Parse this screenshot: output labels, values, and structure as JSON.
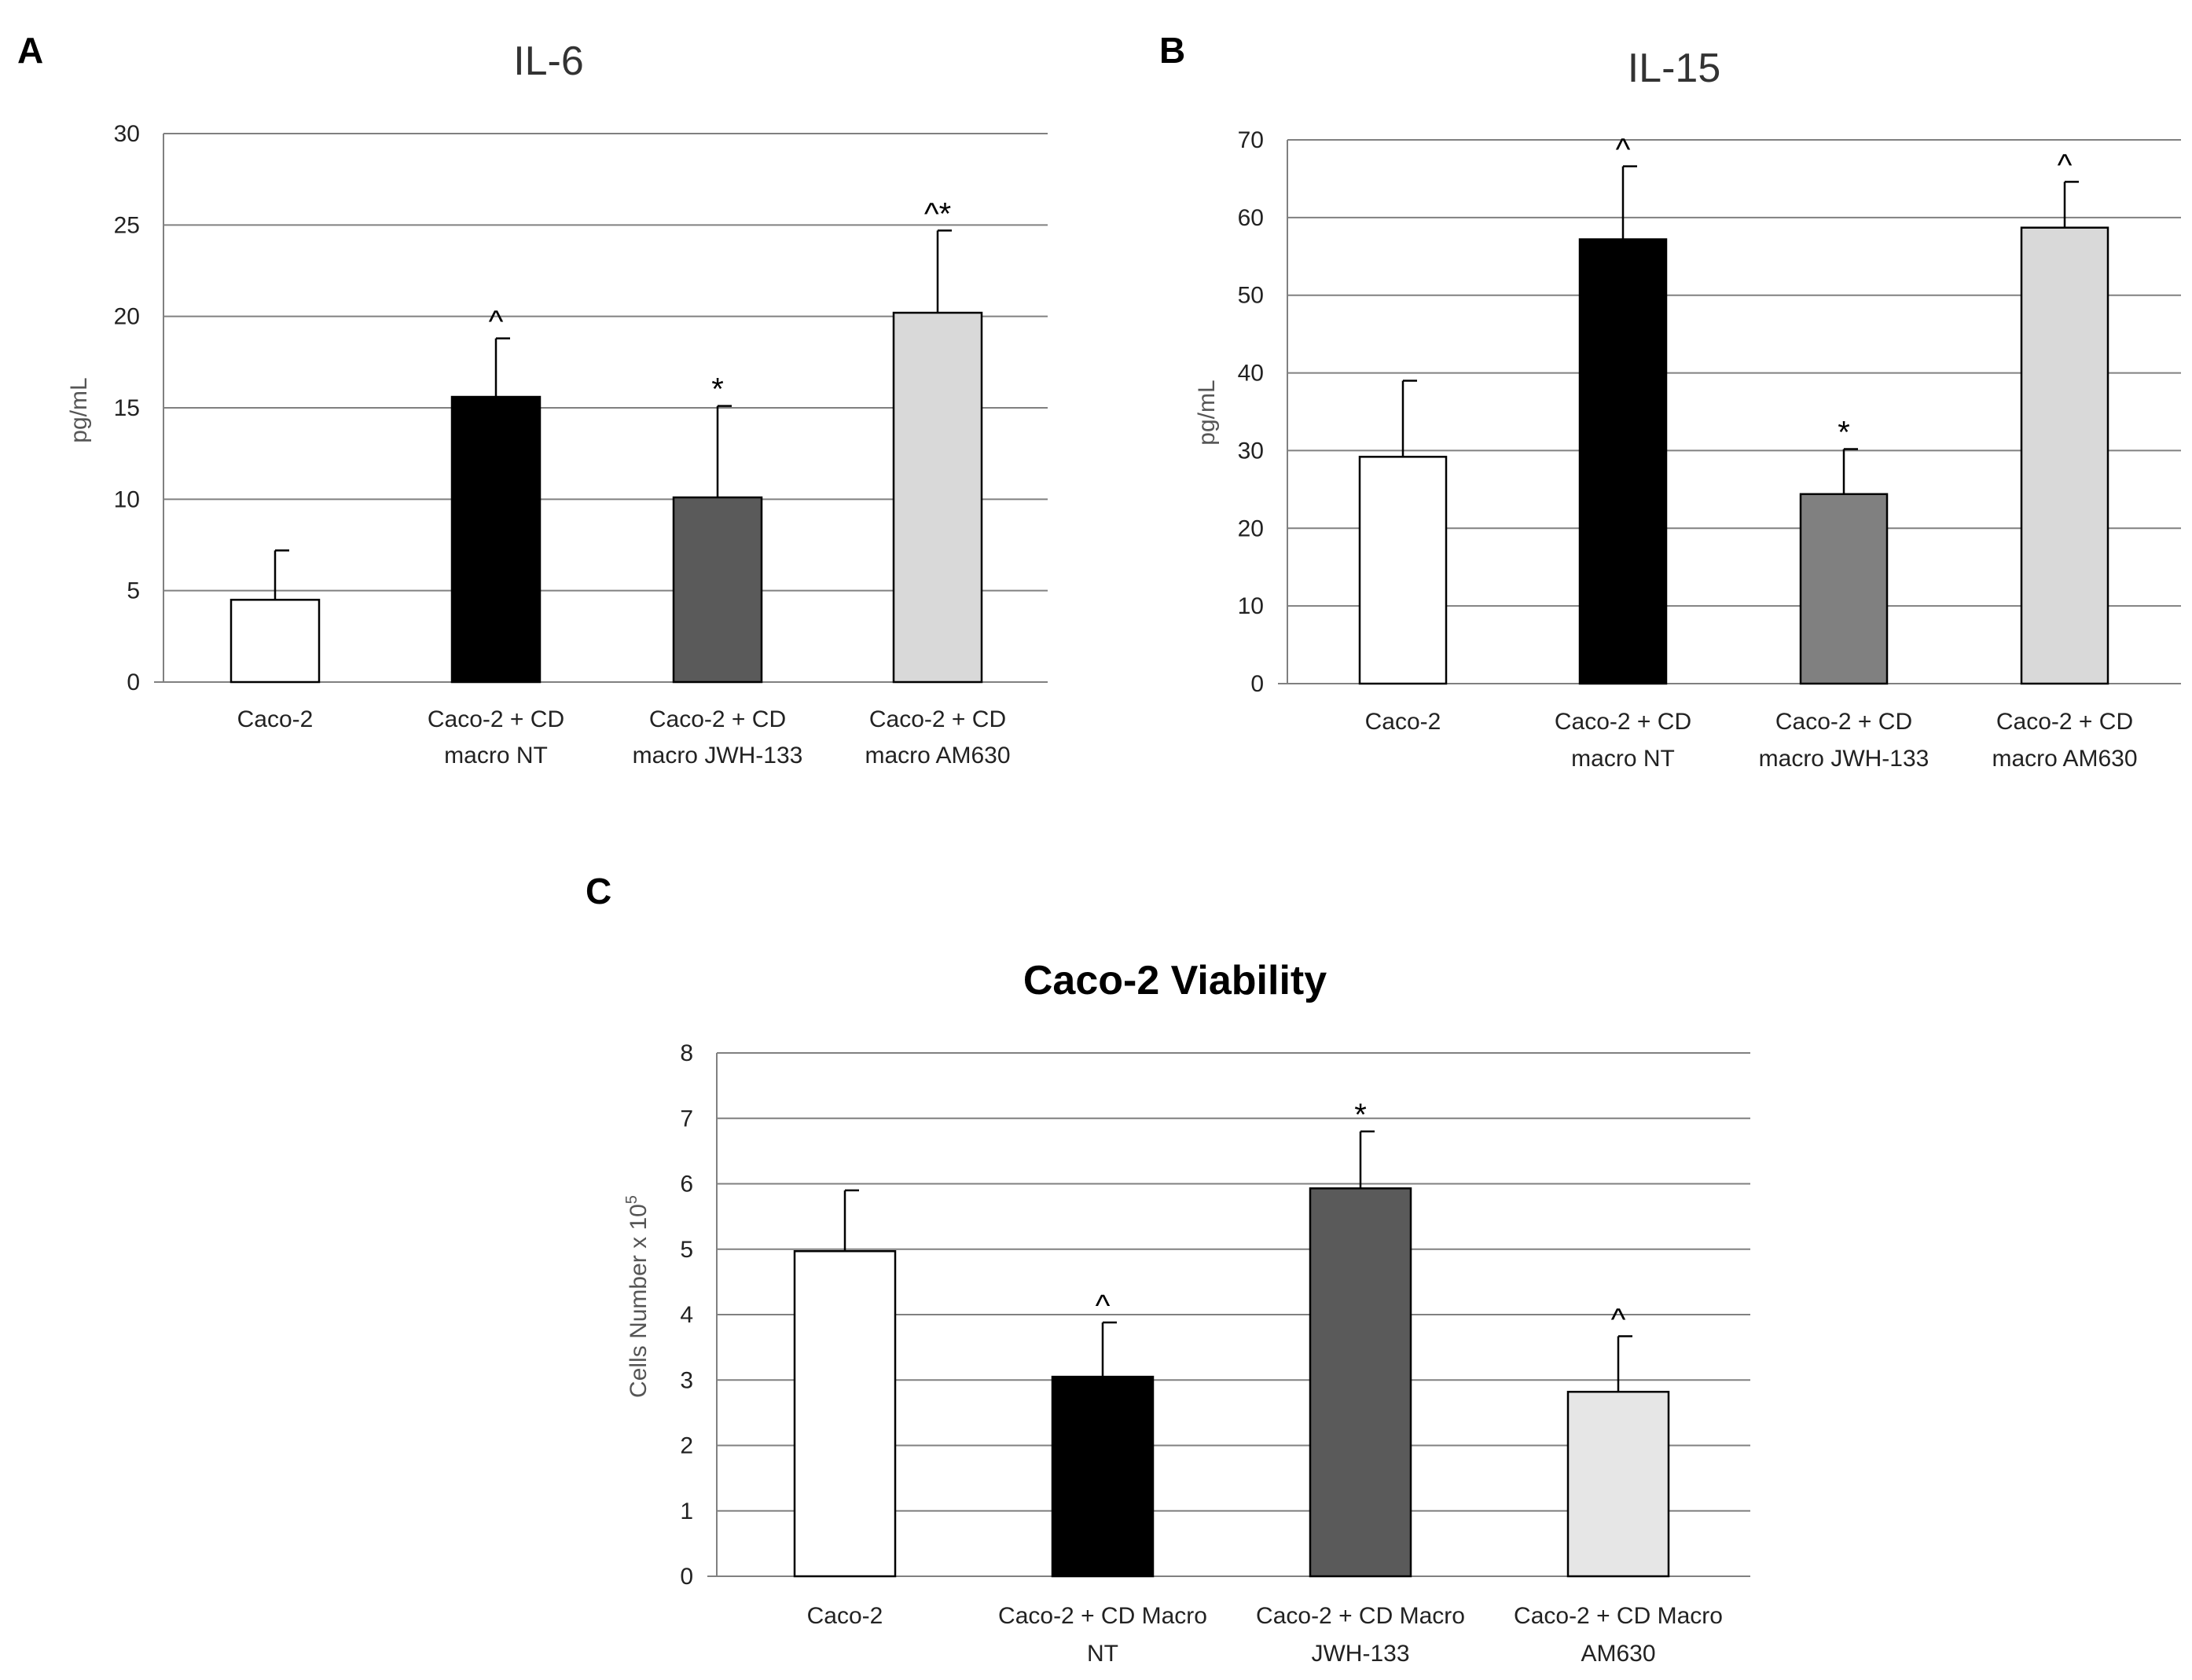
{
  "colors": {
    "bar_white": "#ffffff",
    "bar_black": "#000000",
    "bar_dark_gray": "#5a5a5a",
    "bar_gray": "#808080",
    "bar_light_gray": "#d9d9d9",
    "bar_lighter_gray": "#e6e6e6",
    "gridline": "#808080"
  },
  "chart_data": [
    {
      "panel": "A",
      "type": "bar",
      "title": "IL-6",
      "ylabel": "pg/mL",
      "xlabel": "",
      "ylim": [
        0,
        30
      ],
      "yticks": [
        "0",
        "5",
        "10",
        "15",
        "20",
        "25",
        "30"
      ],
      "grid": true,
      "categories": [
        [
          "Caco-2"
        ],
        [
          "Caco-2 + CD",
          "macro NT"
        ],
        [
          "Caco-2 + CD",
          "macro JWH-133"
        ],
        [
          "Caco-2 + CD",
          "macro AM630"
        ]
      ],
      "values": [
        4.5,
        15.6,
        10.1,
        20.2
      ],
      "errors": [
        2.7,
        3.2,
        5.0,
        4.5
      ],
      "bar_colors": [
        "#ffffff",
        "#000000",
        "#5a5a5a",
        "#d9d9d9"
      ],
      "annotations": [
        "",
        "^",
        "*",
        "^*"
      ]
    },
    {
      "panel": "B",
      "type": "bar",
      "title": "IL-15",
      "ylabel": "pg/mL",
      "xlabel": "",
      "ylim": [
        0,
        70
      ],
      "yticks": [
        "0",
        "10",
        "20",
        "30",
        "40",
        "50",
        "60",
        "70"
      ],
      "grid": true,
      "categories": [
        [
          "Caco-2"
        ],
        [
          "Caco-2 + CD",
          "macro NT"
        ],
        [
          "Caco-2 + CD",
          "macro JWH-133"
        ],
        [
          "Caco-2 + CD",
          "macro AM630"
        ]
      ],
      "values": [
        29.2,
        57.2,
        24.4,
        58.7
      ],
      "errors": [
        9.8,
        9.4,
        5.8,
        5.9
      ],
      "bar_colors": [
        "#ffffff",
        "#000000",
        "#808080",
        "#d9d9d9"
      ],
      "annotations": [
        "",
        "^",
        "*",
        "^"
      ]
    },
    {
      "panel": "C",
      "type": "bar",
      "title": "Caco-2 Viability",
      "ylabel": "Cells Number x 10",
      "ylabel_sup": "5",
      "xlabel": "",
      "ylim": [
        0,
        8
      ],
      "yticks": [
        "0",
        "1",
        "2",
        "3",
        "4",
        "5",
        "6",
        "7",
        "8"
      ],
      "grid": true,
      "categories": [
        [
          "Caco-2"
        ],
        [
          "Caco-2 + CD Macro",
          "NT"
        ],
        [
          "Caco-2 + CD Macro",
          "JWH-133"
        ],
        [
          "Caco-2 + CD Macro",
          "AM630"
        ]
      ],
      "values": [
        4.97,
        3.05,
        5.93,
        2.82
      ],
      "errors": [
        0.93,
        0.83,
        0.87,
        0.85
      ],
      "bar_colors": [
        "#ffffff",
        "#000000",
        "#5a5a5a",
        "#e6e6e6"
      ],
      "annotations": [
        "",
        "^",
        "*",
        "^"
      ]
    }
  ]
}
